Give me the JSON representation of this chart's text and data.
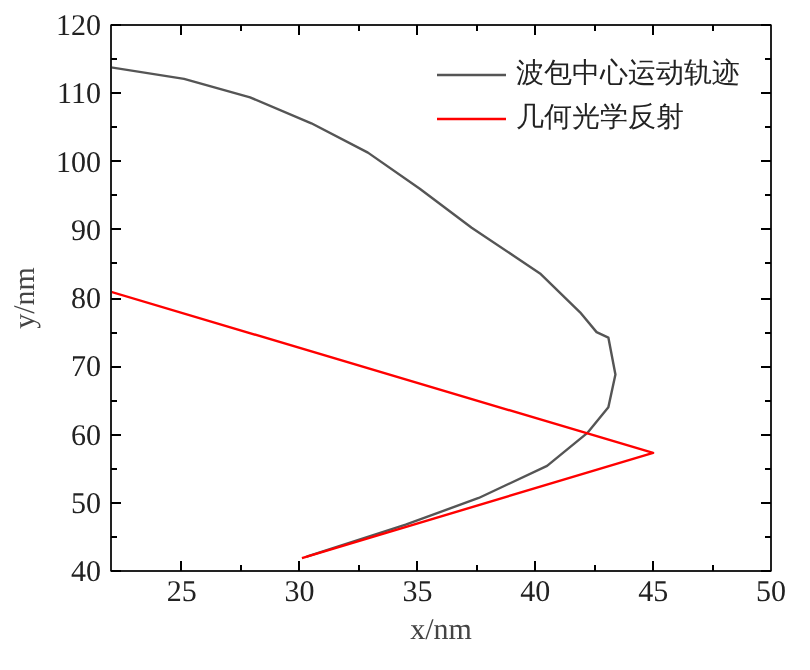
{
  "chart_data": {
    "type": "line",
    "xlabel": "x/nm",
    "ylabel": "y/nm",
    "xlim": [
      22,
      50
    ],
    "ylim": [
      40,
      120
    ],
    "xticks": [
      25,
      30,
      35,
      40,
      45,
      50
    ],
    "yticks": [
      40,
      50,
      60,
      70,
      80,
      90,
      100,
      110,
      120
    ],
    "grid": false,
    "legend": "top right",
    "line_style": "solid",
    "marker": "none",
    "series": [
      {
        "name": "波包中心运动轨迹",
        "color": "#555555",
        "x": [
          22,
          25.1,
          27.9,
          30.5,
          32.9,
          35.1,
          37.3,
          40.2,
          41.9,
          42.6,
          43.1,
          43.4,
          43.1,
          42.2,
          40.5,
          37.6,
          34.5,
          30.3
        ],
        "values": [
          113.8,
          112.1,
          109.4,
          105.6,
          101.3,
          96,
          90.3,
          83.6,
          77.9,
          75,
          74.2,
          68.8,
          64,
          60.2,
          55.4,
          50.7,
          46.8,
          42.1
        ]
      },
      {
        "name": "几何光学反射",
        "color": "#ff0000",
        "x": [
          22,
          45,
          30.1
        ],
        "values": [
          80.9,
          57.3,
          41.9
        ]
      }
    ]
  }
}
